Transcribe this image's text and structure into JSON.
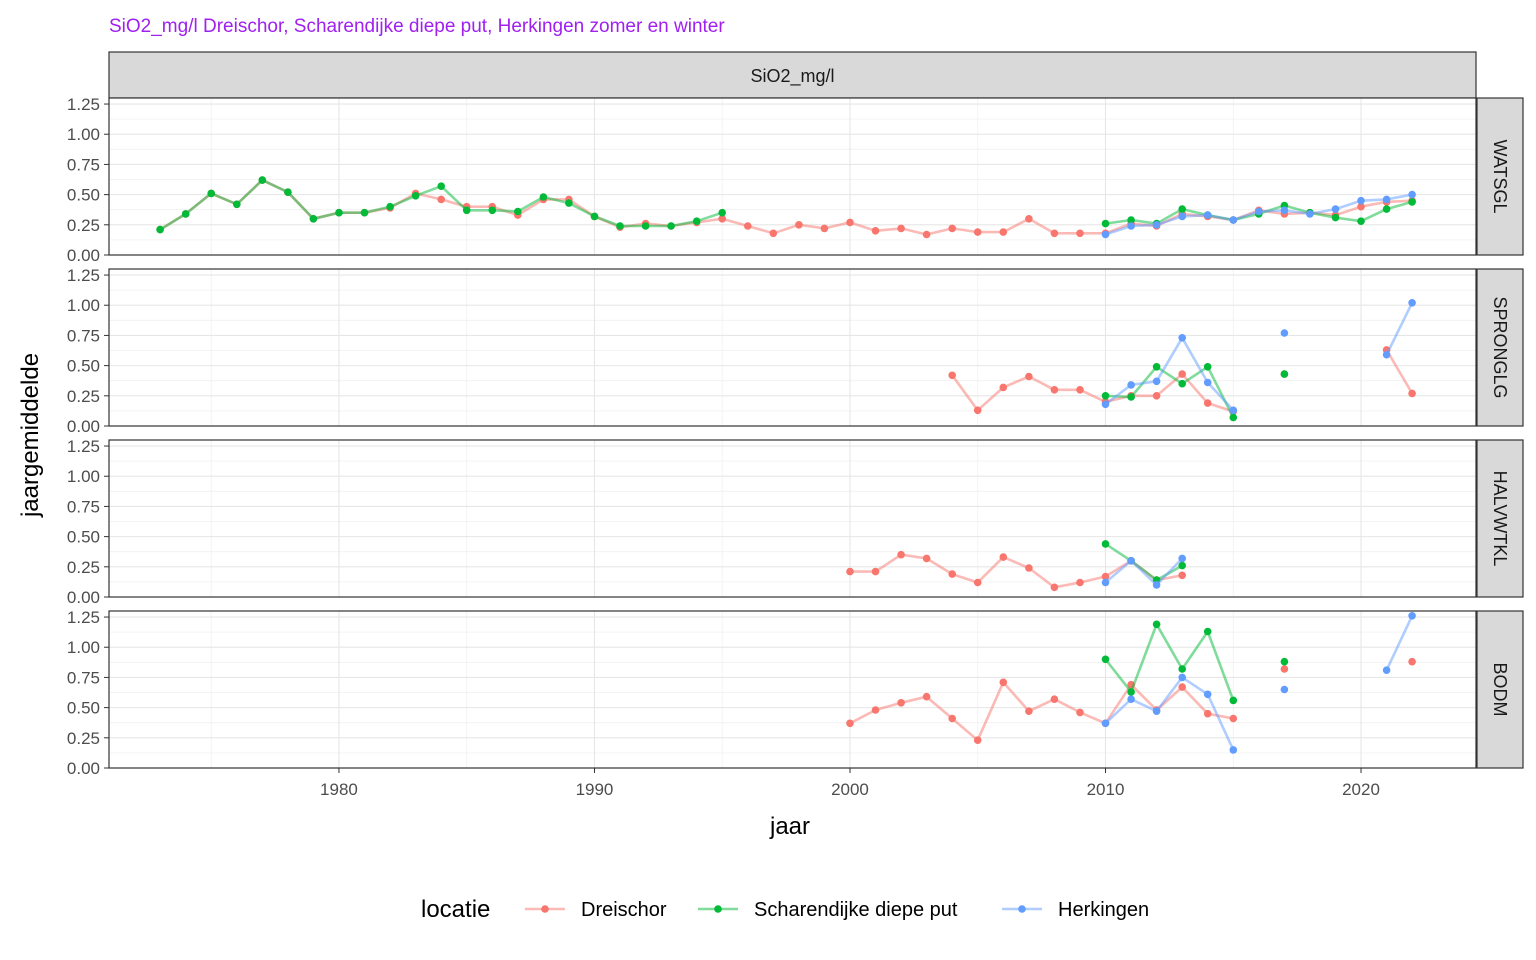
{
  "chart_data": {
    "type": "line",
    "title": "SiO2_mg/l Dreischor, Scharendijke diepe put, Herkingen zomer en winter",
    "title_color": "#A020F0",
    "column_strip": "SiO2_mg/l",
    "xlabel": "jaar",
    "ylabel": "jaargemiddelde",
    "xlim": [
      1971,
      2024.5
    ],
    "ylim": [
      0,
      1.3
    ],
    "x_ticks": [
      1980,
      1990,
      2000,
      2010,
      2020
    ],
    "y_ticks": [
      0,
      0.25,
      0.5,
      0.75,
      1.0,
      1.25
    ],
    "y_tick_labels": [
      "0.00",
      "0.25",
      "0.50",
      "0.75",
      "1.00",
      "1.25"
    ],
    "legend_title": "locatie",
    "series_meta": [
      {
        "name": "Dreischor",
        "color": "#F8766D"
      },
      {
        "name": "Scharendijke diepe put",
        "color": "#00BA38"
      },
      {
        "name": "Herkingen",
        "color": "#619CFF"
      }
    ],
    "panels": [
      {
        "strip": "WATSGL",
        "series": [
          {
            "name": "Dreischor",
            "points": [
              [
                1973,
                0.21
              ],
              [
                1974,
                0.34
              ],
              [
                1975,
                0.51
              ],
              [
                1976,
                0.42
              ],
              [
                1977,
                0.62
              ],
              [
                1978,
                0.52
              ],
              [
                1979,
                0.3
              ],
              [
                1980,
                0.35
              ],
              [
                1981,
                0.35
              ],
              [
                1982,
                0.39
              ],
              [
                1983,
                0.51
              ],
              [
                1984,
                0.46
              ],
              [
                1985,
                0.4
              ],
              [
                1986,
                0.4
              ],
              [
                1987,
                0.33
              ],
              [
                1988,
                0.46
              ],
              [
                1989,
                0.46
              ],
              [
                1990,
                0.32
              ],
              [
                1991,
                0.23
              ],
              [
                1992,
                0.26
              ],
              [
                1993,
                0.24
              ],
              [
                1994,
                0.27
              ],
              [
                1995,
                0.3
              ],
              [
                1996,
                0.24
              ],
              [
                1997,
                0.18
              ],
              [
                1998,
                0.25
              ],
              [
                1999,
                0.22
              ],
              [
                2000,
                0.27
              ],
              [
                2001,
                0.2
              ],
              [
                2002,
                0.22
              ],
              [
                2003,
                0.17
              ],
              [
                2004,
                0.22
              ],
              [
                2005,
                0.19
              ],
              [
                2006,
                0.19
              ],
              [
                2007,
                0.3
              ],
              [
                2008,
                0.18
              ],
              [
                2009,
                0.18
              ],
              [
                2010,
                0.18
              ],
              [
                2011,
                0.26
              ],
              [
                2012,
                0.24
              ],
              [
                2013,
                0.34
              ],
              [
                2014,
                0.32
              ],
              [
                2015,
                0.29
              ],
              [
                2016,
                0.37
              ],
              [
                2017,
                0.34
              ],
              [
                2018,
                0.35
              ],
              [
                2019,
                0.33
              ],
              [
                2020,
                0.4
              ],
              [
                2021,
                0.44
              ],
              [
                2022,
                0.45
              ]
            ]
          },
          {
            "name": "Scharendijke diepe put",
            "points": [
              [
                1973,
                0.21
              ],
              [
                1974,
                0.34
              ],
              [
                1975,
                0.51
              ],
              [
                1976,
                0.42
              ],
              [
                1977,
                0.62
              ],
              [
                1978,
                0.52
              ],
              [
                1979,
                0.3
              ],
              [
                1980,
                0.35
              ],
              [
                1981,
                0.35
              ],
              [
                1982,
                0.4
              ],
              [
                1983,
                0.49
              ],
              [
                1984,
                0.57
              ],
              [
                1985,
                0.37
              ],
              [
                1986,
                0.37
              ],
              [
                1987,
                0.36
              ],
              [
                1988,
                0.48
              ],
              [
                1989,
                0.43
              ],
              [
                1990,
                0.32
              ],
              [
                1991,
                0.24
              ],
              [
                1992,
                0.24
              ],
              [
                1993,
                0.24
              ],
              [
                1994,
                0.28
              ],
              [
                1995,
                0.35
              ],
              [
                null,
                null
              ],
              [
                2010,
                0.26
              ],
              [
                2011,
                0.29
              ],
              [
                2012,
                0.26
              ],
              [
                2013,
                0.38
              ],
              [
                2014,
                0.33
              ],
              [
                2015,
                0.29
              ],
              [
                2016,
                0.34
              ],
              [
                2017,
                0.41
              ],
              [
                2018,
                0.35
              ],
              [
                2019,
                0.31
              ],
              [
                2020,
                0.28
              ],
              [
                2021,
                0.38
              ],
              [
                2022,
                0.44
              ]
            ]
          },
          {
            "name": "Herkingen",
            "points": [
              [
                2010,
                0.17
              ],
              [
                2011,
                0.24
              ],
              [
                2012,
                0.25
              ],
              [
                2013,
                0.32
              ],
              [
                2014,
                0.33
              ],
              [
                2015,
                0.29
              ],
              [
                2016,
                0.36
              ],
              [
                2017,
                0.37
              ],
              [
                2018,
                0.34
              ],
              [
                2019,
                0.38
              ],
              [
                2020,
                0.45
              ],
              [
                2021,
                0.46
              ],
              [
                2022,
                0.5
              ]
            ]
          }
        ]
      },
      {
        "strip": "SPRONGLG",
        "series": [
          {
            "name": "Dreischor",
            "points": [
              [
                2004,
                0.42
              ],
              [
                2005,
                0.13
              ],
              [
                2006,
                0.32
              ],
              [
                2007,
                0.41
              ],
              [
                2008,
                0.3
              ],
              [
                2009,
                0.3
              ],
              [
                2010,
                0.2
              ],
              [
                2011,
                0.25
              ],
              [
                2012,
                0.25
              ],
              [
                2013,
                0.43
              ],
              [
                2014,
                0.19
              ],
              [
                2015,
                0.12
              ],
              [
                null,
                null
              ],
              [
                2017,
                0.43
              ],
              [
                null,
                null
              ],
              [
                2021,
                0.63
              ],
              [
                2022,
                0.27
              ]
            ]
          },
          {
            "name": "Scharendijke diepe put",
            "points": [
              [
                2010,
                0.25
              ],
              [
                2011,
                0.24
              ],
              [
                2012,
                0.49
              ],
              [
                2013,
                0.35
              ],
              [
                2014,
                0.49
              ],
              [
                2015,
                0.07
              ],
              [
                null,
                null
              ],
              [
                2017,
                0.43
              ]
            ]
          },
          {
            "name": "Herkingen",
            "points": [
              [
                2010,
                0.18
              ],
              [
                2011,
                0.34
              ],
              [
                2012,
                0.37
              ],
              [
                2013,
                0.73
              ],
              [
                2014,
                0.36
              ],
              [
                2015,
                0.13
              ],
              [
                null,
                null
              ],
              [
                2017,
                0.77
              ],
              [
                null,
                null
              ],
              [
                2021,
                0.59
              ],
              [
                2022,
                1.02
              ]
            ]
          }
        ]
      },
      {
        "strip": "HALVWTKL",
        "series": [
          {
            "name": "Dreischor",
            "points": [
              [
                2000,
                0.21
              ],
              [
                2001,
                0.21
              ],
              [
                2002,
                0.35
              ],
              [
                2003,
                0.32
              ],
              [
                2004,
                0.19
              ],
              [
                2005,
                0.12
              ],
              [
                2006,
                0.33
              ],
              [
                2007,
                0.24
              ],
              [
                2008,
                0.08
              ],
              [
                2009,
                0.12
              ],
              [
                2010,
                0.17
              ],
              [
                2011,
                0.3
              ],
              [
                2012,
                0.14
              ],
              [
                2013,
                0.18
              ]
            ]
          },
          {
            "name": "Scharendijke diepe put",
            "points": [
              [
                2010,
                0.44
              ],
              [
                2011,
                0.3
              ],
              [
                2012,
                0.14
              ],
              [
                2013,
                0.26
              ]
            ]
          },
          {
            "name": "Herkingen",
            "points": [
              [
                2010,
                0.12
              ],
              [
                2011,
                0.3
              ],
              [
                2012,
                0.1
              ],
              [
                2013,
                0.32
              ]
            ]
          }
        ]
      },
      {
        "strip": "BODM",
        "series": [
          {
            "name": "Dreischor",
            "points": [
              [
                2000,
                0.37
              ],
              [
                2001,
                0.48
              ],
              [
                2002,
                0.54
              ],
              [
                2003,
                0.59
              ],
              [
                2004,
                0.41
              ],
              [
                2005,
                0.23
              ],
              [
                2006,
                0.71
              ],
              [
                2007,
                0.47
              ],
              [
                2008,
                0.57
              ],
              [
                2009,
                0.46
              ],
              [
                2010,
                0.37
              ],
              [
                2011,
                0.69
              ],
              [
                2012,
                0.48
              ],
              [
                2013,
                0.67
              ],
              [
                2014,
                0.45
              ],
              [
                2015,
                0.41
              ],
              [
                null,
                null
              ],
              [
                2017,
                0.82
              ],
              [
                null,
                null
              ],
              [
                2022,
                0.88
              ]
            ]
          },
          {
            "name": "Scharendijke diepe put",
            "points": [
              [
                2010,
                0.9
              ],
              [
                2011,
                0.63
              ],
              [
                2012,
                1.19
              ],
              [
                2013,
                0.82
              ],
              [
                2014,
                1.13
              ],
              [
                2015,
                0.56
              ],
              [
                null,
                null
              ],
              [
                2017,
                0.88
              ]
            ]
          },
          {
            "name": "Herkingen",
            "points": [
              [
                2010,
                0.37
              ],
              [
                2011,
                0.57
              ],
              [
                2012,
                0.47
              ],
              [
                2013,
                0.75
              ],
              [
                2014,
                0.61
              ],
              [
                2015,
                0.15
              ],
              [
                null,
                null
              ],
              [
                2017,
                0.65
              ],
              [
                null,
                null
              ],
              [
                2021,
                0.81
              ],
              [
                2022,
                1.26
              ]
            ]
          }
        ]
      }
    ]
  }
}
